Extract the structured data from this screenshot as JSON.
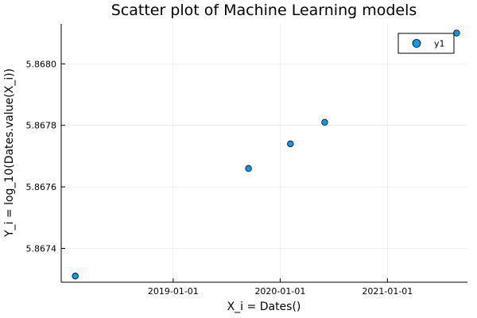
{
  "chart_data": {
    "type": "scatter",
    "title": "Scatter plot of Machine Learning models",
    "xlabel": "X_i = Dates()",
    "ylabel": "Y_i = log_10(Dates.value(X_i))",
    "x_axis_type": "date",
    "x_ticks": [
      "2019-01-01",
      "2020-01-01",
      "2021-01-01"
    ],
    "xlim": [
      "2017-12-15",
      "2021-10-01"
    ],
    "y_ticks": [
      5.8674,
      5.8676,
      5.8678,
      5.868
    ],
    "y_tick_labels": [
      "5.8674",
      "5.8676",
      "5.8678",
      "5.8680"
    ],
    "ylim": [
      5.86729,
      5.86813
    ],
    "series": [
      {
        "name": "y1",
        "color": "#009af9",
        "points": [
          {
            "x": "2018-02-01",
            "y": 5.86731
          },
          {
            "x": "2019-09-15",
            "y": 5.86766
          },
          {
            "x": "2020-02-05",
            "y": 5.86774
          },
          {
            "x": "2020-06-01",
            "y": 5.86781
          },
          {
            "x": "2021-08-25",
            "y": 5.8681
          }
        ]
      }
    ],
    "grid": true,
    "legend_position": "top-right"
  }
}
